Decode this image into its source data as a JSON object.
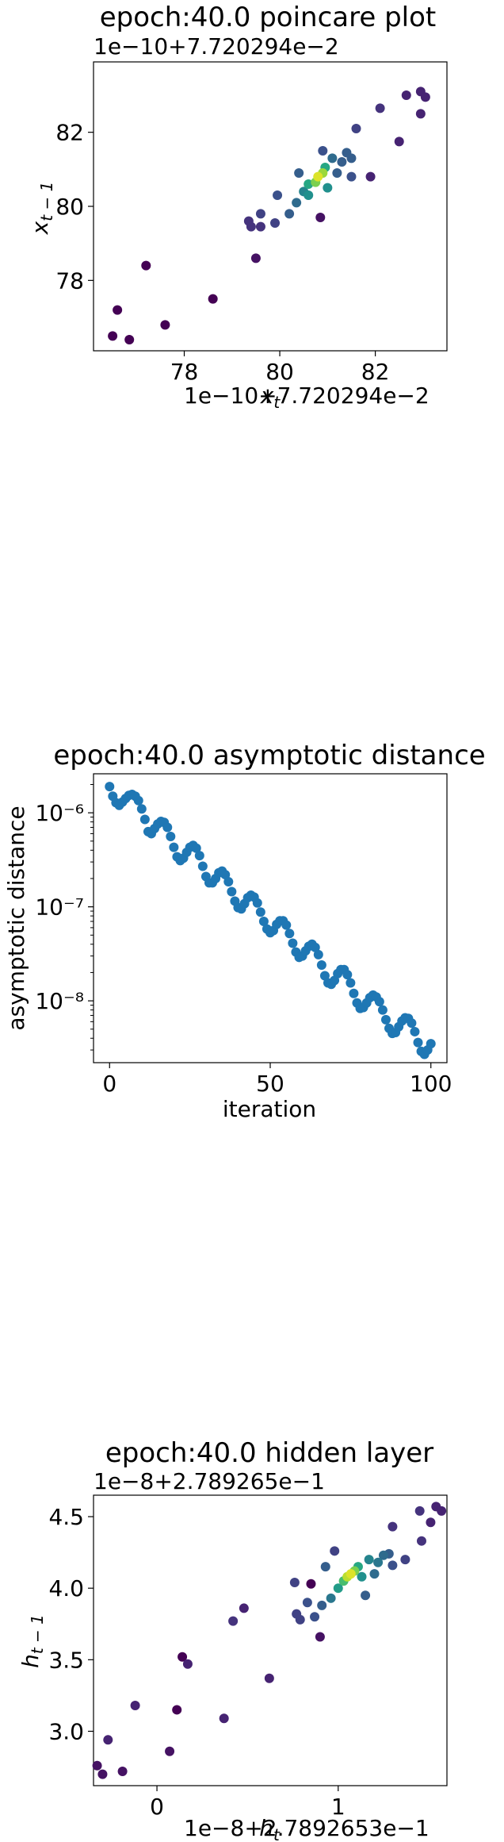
{
  "chart_data": [
    {
      "type": "scatter",
      "title": "epoch:40.0 poincare plot",
      "xlabel": "x_t",
      "ylabel": "x_{t-1}",
      "x_offset_text": "1e−10+7.720294e−2",
      "y_offset_text": "1e−10+7.720294e−2",
      "x_ticks": [
        78,
        80,
        82
      ],
      "y_ticks": [
        78,
        80,
        82
      ],
      "x_tick_labels": [
        "78",
        "80",
        "82"
      ],
      "y_tick_labels": [
        "78",
        "80",
        "82"
      ],
      "xlim": [
        76.1,
        83.5
      ],
      "ylim": [
        76.1,
        83.9
      ],
      "colormap": "viridis",
      "color_encodes": "point density",
      "grid": false,
      "points": [
        {
          "x": 76.5,
          "y": 76.5,
          "density": 0.0
        },
        {
          "x": 76.6,
          "y": 77.2,
          "density": 0.0
        },
        {
          "x": 76.85,
          "y": 76.4,
          "density": 0.0
        },
        {
          "x": 77.2,
          "y": 78.4,
          "density": 0.0
        },
        {
          "x": 77.6,
          "y": 76.8,
          "density": 0.0
        },
        {
          "x": 78.6,
          "y": 77.5,
          "density": 0.0
        },
        {
          "x": 79.5,
          "y": 78.6,
          "density": 0.05
        },
        {
          "x": 79.35,
          "y": 79.6,
          "density": 0.15
        },
        {
          "x": 79.4,
          "y": 79.45,
          "density": 0.15
        },
        {
          "x": 79.6,
          "y": 79.45,
          "density": 0.15
        },
        {
          "x": 79.6,
          "y": 79.8,
          "density": 0.2
        },
        {
          "x": 79.9,
          "y": 79.55,
          "density": 0.2
        },
        {
          "x": 79.95,
          "y": 80.3,
          "density": 0.25
        },
        {
          "x": 80.2,
          "y": 79.8,
          "density": 0.3
        },
        {
          "x": 80.35,
          "y": 80.1,
          "density": 0.35
        },
        {
          "x": 80.4,
          "y": 80.9,
          "density": 0.3
        },
        {
          "x": 80.5,
          "y": 80.4,
          "density": 0.45
        },
        {
          "x": 80.6,
          "y": 80.3,
          "density": 0.5
        },
        {
          "x": 80.6,
          "y": 80.6,
          "density": 0.6
        },
        {
          "x": 80.75,
          "y": 80.65,
          "density": 0.8
        },
        {
          "x": 80.8,
          "y": 80.8,
          "density": 0.95
        },
        {
          "x": 80.9,
          "y": 80.9,
          "density": 0.85
        },
        {
          "x": 80.95,
          "y": 81.05,
          "density": 0.6
        },
        {
          "x": 81.0,
          "y": 80.5,
          "density": 0.5
        },
        {
          "x": 80.85,
          "y": 79.7,
          "density": 0.05
        },
        {
          "x": 80.9,
          "y": 81.5,
          "density": 0.25
        },
        {
          "x": 81.1,
          "y": 81.3,
          "density": 0.35
        },
        {
          "x": 81.2,
          "y": 80.9,
          "density": 0.3
        },
        {
          "x": 81.3,
          "y": 81.2,
          "density": 0.3
        },
        {
          "x": 81.4,
          "y": 81.45,
          "density": 0.3
        },
        {
          "x": 81.5,
          "y": 81.3,
          "density": 0.3
        },
        {
          "x": 81.5,
          "y": 80.8,
          "density": 0.25
        },
        {
          "x": 81.6,
          "y": 82.1,
          "density": 0.2
        },
        {
          "x": 81.9,
          "y": 80.8,
          "density": 0.1
        },
        {
          "x": 82.1,
          "y": 82.65,
          "density": 0.15
        },
        {
          "x": 82.5,
          "y": 81.75,
          "density": 0.1
        },
        {
          "x": 82.65,
          "y": 83.0,
          "density": 0.1
        },
        {
          "x": 82.95,
          "y": 83.1,
          "density": 0.1
        },
        {
          "x": 82.95,
          "y": 82.5,
          "density": 0.1
        },
        {
          "x": 83.05,
          "y": 82.95,
          "density": 0.1
        }
      ]
    },
    {
      "type": "scatter",
      "title": "epoch:40.0 asymptotic distance",
      "xlabel": "iteration",
      "ylabel": "asymptotic distance",
      "yscale": "log",
      "x_ticks": [
        0,
        50,
        100
      ],
      "x_tick_labels": [
        "0",
        "50",
        "100"
      ],
      "y_ticks": [
        1e-08,
        1e-07,
        1e-06
      ],
      "y_tick_labels": [
        "10⁻⁸",
        "10⁻⁷",
        "10⁻⁶"
      ],
      "xlim": [
        -5,
        105
      ],
      "ylim": [
        2.2e-09,
        2.6e-06
      ],
      "color": "#1f77b4",
      "grid": false,
      "x": [
        0,
        1,
        2,
        3,
        4,
        5,
        6,
        7,
        8,
        9,
        10,
        11,
        12,
        13,
        14,
        15,
        16,
        17,
        18,
        19,
        20,
        21,
        22,
        23,
        24,
        25,
        26,
        27,
        28,
        29,
        30,
        31,
        32,
        33,
        34,
        35,
        36,
        37,
        38,
        39,
        40,
        41,
        42,
        43,
        44,
        45,
        46,
        47,
        48,
        49,
        50,
        51,
        52,
        53,
        54,
        55,
        56,
        57,
        58,
        59,
        60,
        61,
        62,
        63,
        64,
        65,
        66,
        67,
        68,
        69,
        70,
        71,
        72,
        73,
        74,
        75,
        76,
        77,
        78,
        79,
        80,
        81,
        82,
        83,
        84,
        85,
        86,
        87,
        88,
        89,
        90,
        91,
        92,
        93,
        94,
        95,
        96,
        97,
        98,
        99,
        100
      ],
      "y": [
        1.9e-06,
        1.5e-06,
        1.28e-06,
        1.2e-06,
        1.3e-06,
        1.42e-06,
        1.53e-06,
        1.57e-06,
        1.5e-06,
        1.35e-06,
        1.1e-06,
        8.5e-07,
        6.3e-07,
        6e-07,
        6.8e-07,
        7.6e-07,
        8.1e-07,
        7.9e-07,
        7e-07,
        5.6e-07,
        4.3e-07,
        3.4e-07,
        3.1e-07,
        3.3e-07,
        3.8e-07,
        4.3e-07,
        4.5e-07,
        4.2e-07,
        3.5e-07,
        2.7e-07,
        2.1e-07,
        1.8e-07,
        1.8e-07,
        2e-07,
        2.3e-07,
        2.4e-07,
        2.2e-07,
        1.85e-07,
        1.45e-07,
        1.15e-07,
        9.8e-08,
        9.5e-08,
        1.08e-07,
        1.25e-07,
        1.33e-07,
        1.27e-07,
        1.1e-07,
        8.8e-08,
        7e-08,
        5.8e-08,
        5.3e-08,
        5.6e-08,
        6.5e-08,
        7.1e-08,
        7.1e-08,
        6.4e-08,
        5.2e-08,
        4.1e-08,
        3.3e-08,
        2.9e-08,
        3e-08,
        3.4e-08,
        3.8e-08,
        4e-08,
        3.7e-08,
        3.1e-08,
        2.4e-08,
        1.85e-08,
        1.55e-08,
        1.5e-08,
        1.65e-08,
        1.95e-08,
        2.15e-08,
        2.15e-08,
        1.9e-08,
        1.55e-08,
        1.2e-08,
        9.5e-09,
        8.3e-09,
        8.5e-09,
        9.5e-09,
        1.08e-08,
        1.15e-08,
        1.1e-08,
        9.8e-09,
        8e-09,
        6.3e-09,
        5.1e-09,
        4.5e-09,
        4.6e-09,
        5.3e-09,
        6.1e-09,
        6.6e-09,
        6.5e-09,
        5.8e-09,
        4.7e-09,
        3.6e-09,
        2.9e-09,
        2.7e-09,
        3e-09,
        3.5e-09
      ]
    },
    {
      "type": "scatter",
      "title": "epoch:40.0 hidden layer",
      "xlabel": "h_t",
      "ylabel": "h_{t-1}",
      "x_offset_text": "1e−8+2.7892653e−1",
      "y_offset_text": "1e−8+2.789265e−1",
      "x_ticks": [
        0,
        1
      ],
      "x_tick_labels": [
        "0",
        "1"
      ],
      "y_ticks": [
        3.0,
        3.5,
        4.0,
        4.5
      ],
      "y_tick_labels": [
        "3.0",
        "3.5",
        "4.0",
        "4.5"
      ],
      "xlim": [
        -0.35,
        1.6
      ],
      "ylim": [
        2.62,
        4.65
      ],
      "colormap": "viridis",
      "color_encodes": "point density",
      "grid": false,
      "points": [
        {
          "x": -0.33,
          "y": 2.76,
          "density": 0.05
        },
        {
          "x": -0.3,
          "y": 2.7,
          "density": 0.05
        },
        {
          "x": -0.27,
          "y": 2.94,
          "density": 0.1
        },
        {
          "x": -0.19,
          "y": 2.72,
          "density": 0.05
        },
        {
          "x": -0.12,
          "y": 3.18,
          "density": 0.1
        },
        {
          "x": 0.07,
          "y": 2.86,
          "density": 0.05
        },
        {
          "x": 0.11,
          "y": 3.15,
          "density": 0.0
        },
        {
          "x": 0.14,
          "y": 3.52,
          "density": 0.0
        },
        {
          "x": 0.17,
          "y": 3.47,
          "density": 0.1
        },
        {
          "x": 0.37,
          "y": 3.09,
          "density": 0.1
        },
        {
          "x": 0.42,
          "y": 3.77,
          "density": 0.15
        },
        {
          "x": 0.48,
          "y": 3.86,
          "density": 0.1
        },
        {
          "x": 0.62,
          "y": 3.37,
          "density": 0.1
        },
        {
          "x": 0.76,
          "y": 4.04,
          "density": 0.2
        },
        {
          "x": 0.77,
          "y": 3.82,
          "density": 0.2
        },
        {
          "x": 0.79,
          "y": 3.78,
          "density": 0.2
        },
        {
          "x": 0.83,
          "y": 3.9,
          "density": 0.25
        },
        {
          "x": 0.85,
          "y": 4.03,
          "density": 0.0
        },
        {
          "x": 0.87,
          "y": 3.8,
          "density": 0.25
        },
        {
          "x": 0.9,
          "y": 3.66,
          "density": 0.05
        },
        {
          "x": 0.91,
          "y": 3.88,
          "density": 0.3
        },
        {
          "x": 0.93,
          "y": 4.15,
          "density": 0.3
        },
        {
          "x": 0.96,
          "y": 3.93,
          "density": 0.4
        },
        {
          "x": 0.98,
          "y": 4.26,
          "density": 0.2
        },
        {
          "x": 1.0,
          "y": 4.0,
          "density": 0.55
        },
        {
          "x": 1.03,
          "y": 4.05,
          "density": 0.7
        },
        {
          "x": 1.05,
          "y": 4.08,
          "density": 0.9
        },
        {
          "x": 1.07,
          "y": 4.1,
          "density": 0.95
        },
        {
          "x": 1.09,
          "y": 4.12,
          "density": 0.8
        },
        {
          "x": 1.11,
          "y": 4.15,
          "density": 0.6
        },
        {
          "x": 1.13,
          "y": 4.08,
          "density": 0.5
        },
        {
          "x": 1.15,
          "y": 3.95,
          "density": 0.3
        },
        {
          "x": 1.17,
          "y": 4.2,
          "density": 0.45
        },
        {
          "x": 1.2,
          "y": 4.1,
          "density": 0.35
        },
        {
          "x": 1.22,
          "y": 4.18,
          "density": 0.4
        },
        {
          "x": 1.25,
          "y": 4.23,
          "density": 0.35
        },
        {
          "x": 1.28,
          "y": 4.24,
          "density": 0.3
        },
        {
          "x": 1.3,
          "y": 4.16,
          "density": 0.25
        },
        {
          "x": 1.37,
          "y": 4.2,
          "density": 0.2
        },
        {
          "x": 1.3,
          "y": 4.43,
          "density": 0.15
        },
        {
          "x": 1.45,
          "y": 4.54,
          "density": 0.15
        },
        {
          "x": 1.46,
          "y": 4.33,
          "density": 0.15
        },
        {
          "x": 1.51,
          "y": 4.46,
          "density": 0.1
        },
        {
          "x": 1.54,
          "y": 4.57,
          "density": 0.1
        },
        {
          "x": 1.57,
          "y": 4.54,
          "density": 0.1
        }
      ]
    }
  ]
}
